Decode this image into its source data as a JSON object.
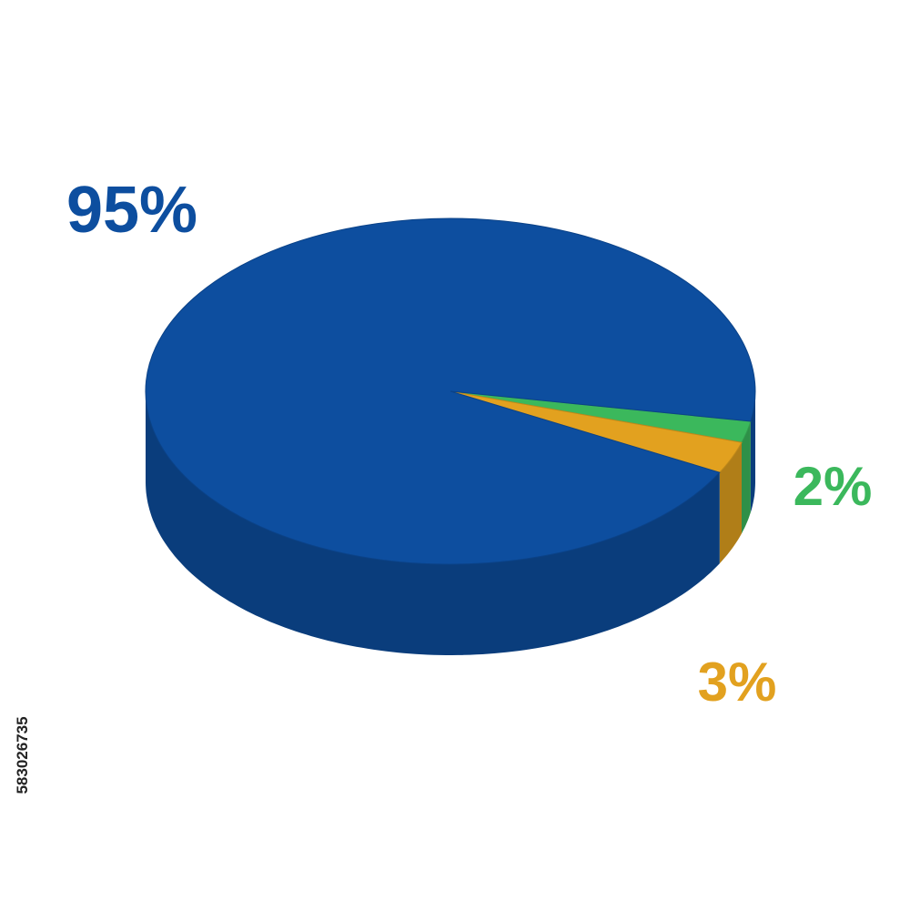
{
  "chart_data": {
    "type": "pie3d",
    "values": [
      2,
      3,
      95
    ],
    "value_labels": [
      "2%",
      "3%",
      "95%"
    ],
    "colors": [
      "#3bb85c",
      "#e2a11f",
      "#0d4e9f"
    ]
  },
  "stock_id": "583026735"
}
